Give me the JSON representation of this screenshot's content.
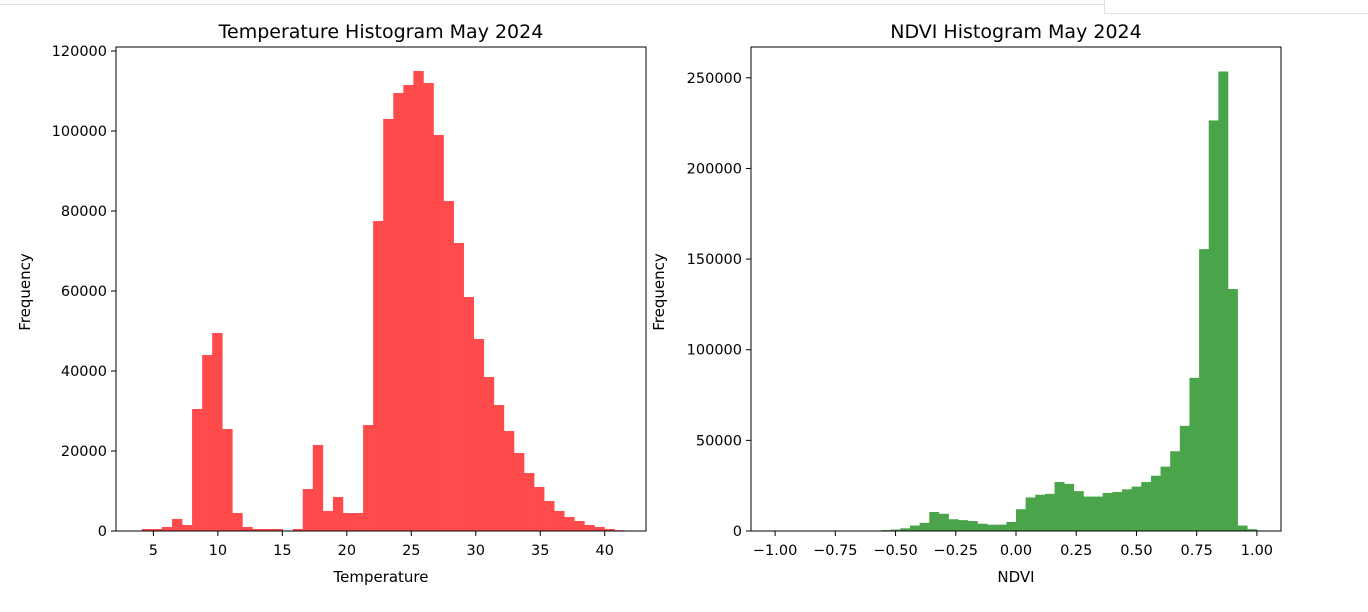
{
  "chart_data": [
    {
      "type": "bar",
      "title": "Temperature Histogram May 2024",
      "xlabel": "Temperature",
      "ylabel": "Frequency",
      "color": "#ff4b4b",
      "xlim": [
        2.1,
        43.2
      ],
      "ylim": [
        0,
        121000
      ],
      "xticks": [
        5,
        10,
        15,
        20,
        25,
        30,
        35,
        40
      ],
      "yticks": [
        0,
        20000,
        40000,
        60000,
        80000,
        100000,
        120000
      ],
      "bin_edges": [
        4.1,
        4.88,
        5.66,
        6.44,
        7.22,
        8.0,
        8.78,
        9.56,
        10.34,
        11.12,
        11.9,
        12.68,
        13.46,
        14.24,
        15.02,
        15.8,
        16.58,
        17.36,
        18.14,
        18.92,
        19.7,
        20.48,
        21.26,
        22.04,
        22.82,
        23.6,
        24.38,
        25.16,
        25.94,
        26.72,
        27.5,
        28.28,
        29.06,
        29.84,
        30.62,
        31.4,
        32.18,
        32.96,
        33.74,
        34.52,
        35.3,
        36.08,
        36.86,
        37.64,
        38.42,
        39.2,
        39.98,
        40.76,
        41.54
      ],
      "values": [
        500,
        500,
        1000,
        3000,
        1500,
        30500,
        44000,
        49500,
        25500,
        4500,
        1000,
        500,
        500,
        500,
        0,
        500,
        10500,
        21500,
        5000,
        8500,
        4500,
        4500,
        26500,
        77500,
        103000,
        109500,
        111500,
        115000,
        112000,
        99000,
        82500,
        72000,
        58500,
        48000,
        38500,
        31500,
        25000,
        19500,
        14500,
        11000,
        7500,
        5000,
        3500,
        2500,
        1500,
        1000,
        500,
        200
      ]
    },
    {
      "type": "bar",
      "title": "NDVI Histogram May 2024",
      "xlabel": "NDVI",
      "ylabel": "Frequency",
      "color": "#4aa54a",
      "xlim": [
        -1.1,
        1.1
      ],
      "ylim": [
        0,
        267000
      ],
      "xticks": [
        -1.0,
        -0.75,
        -0.5,
        -0.25,
        0.0,
        0.25,
        0.5,
        0.75,
        1.0
      ],
      "xtick_labels": [
        "−1.00",
        "−0.75",
        "−0.50",
        "−0.25",
        "0.00",
        "0.25",
        "0.50",
        "0.75",
        "1.00"
      ],
      "yticks": [
        0,
        50000,
        100000,
        150000,
        200000,
        250000
      ],
      "bin_edges": [
        -1.0,
        -0.96,
        -0.92,
        -0.88,
        -0.84,
        -0.8,
        -0.76,
        -0.72,
        -0.68,
        -0.64,
        -0.6,
        -0.56,
        -0.52,
        -0.48,
        -0.44,
        -0.4,
        -0.36,
        -0.32,
        -0.28,
        -0.24,
        -0.2,
        -0.16,
        -0.12,
        -0.08,
        -0.04,
        0.0,
        0.04,
        0.08,
        0.12,
        0.16,
        0.2,
        0.24,
        0.28,
        0.32,
        0.36,
        0.4,
        0.44,
        0.48,
        0.52,
        0.56,
        0.6,
        0.64,
        0.68,
        0.72,
        0.76,
        0.8,
        0.84,
        0.88,
        0.92,
        0.96,
        1.0
      ],
      "values": [
        0,
        0,
        0,
        0,
        0,
        0,
        0,
        0,
        0,
        0,
        200,
        500,
        800,
        1500,
        3000,
        4500,
        10500,
        9500,
        6500,
        6000,
        5500,
        4000,
        3500,
        3500,
        5000,
        12000,
        18500,
        20000,
        20500,
        27000,
        26000,
        22000,
        19000,
        19000,
        21000,
        21500,
        23000,
        24500,
        27000,
        30500,
        35500,
        44000,
        58000,
        84500,
        155500,
        226500,
        253500,
        133500,
        3000,
        1000
      ]
    }
  ]
}
